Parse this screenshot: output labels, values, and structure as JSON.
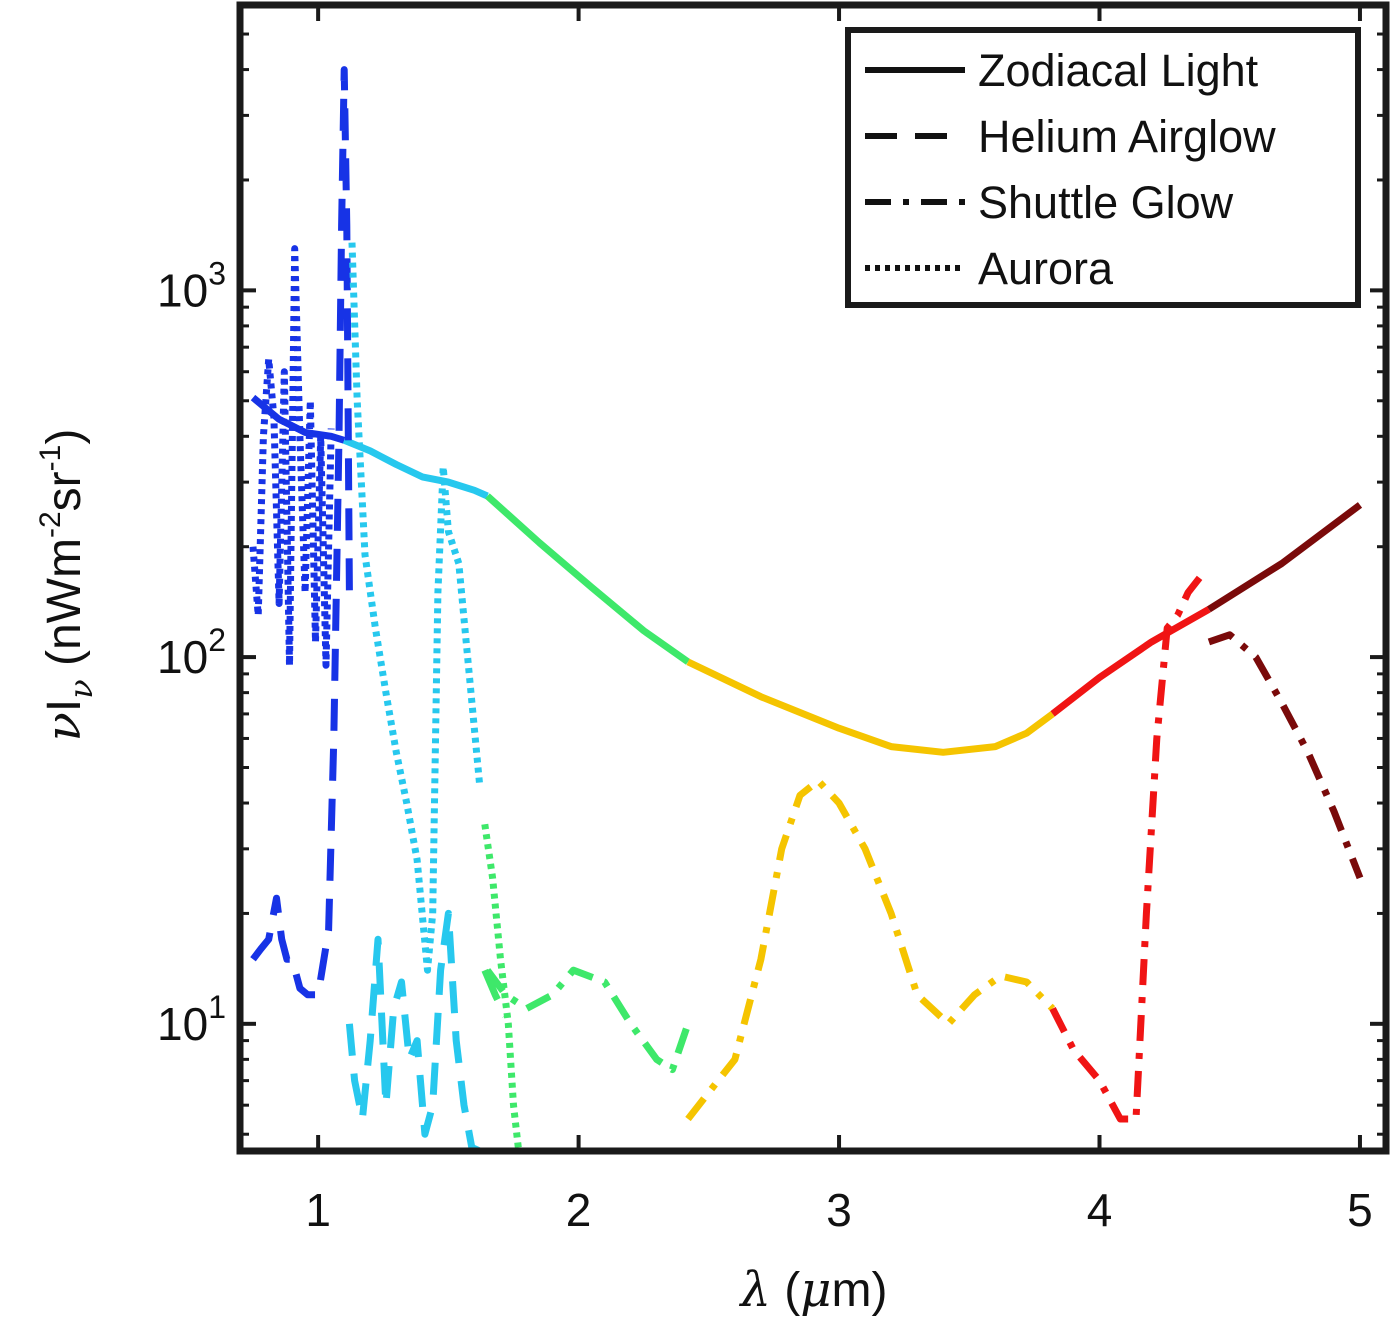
{
  "chart_data": {
    "type": "line",
    "title": "",
    "xlabel": "λ (μm)",
    "ylabel": "νIν (nWm⁻²sr⁻¹)",
    "xlim": [
      0.7,
      5.1
    ],
    "ylim": [
      4.5,
      6000
    ],
    "yscale": "log",
    "grid": false,
    "legend_position": "top-right",
    "x_ticks": [
      {
        "value": 1,
        "label": "1"
      },
      {
        "value": 2,
        "label": "2"
      },
      {
        "value": 3,
        "label": "3"
      },
      {
        "value": 4,
        "label": "4"
      },
      {
        "value": 5,
        "label": "5"
      }
    ],
    "y_ticks": [
      {
        "value": 10,
        "base": "10",
        "exp": "1"
      },
      {
        "value": 100,
        "base": "10",
        "exp": "2"
      },
      {
        "value": 1000,
        "base": "10",
        "exp": "3"
      }
    ],
    "legend": [
      {
        "label": "Zodiacal Light",
        "style": "solid"
      },
      {
        "label": "Helium Airglow",
        "style": "dashed"
      },
      {
        "label": "Shuttle Glow",
        "style": "dashdot"
      },
      {
        "label": "Aurora",
        "style": "dotted"
      }
    ],
    "colors": {
      "band1": "#1733e6",
      "band2": "#27c8ee",
      "band3": "#3ee86a",
      "band4": "#f5c400",
      "band5": "#f01414",
      "band6": "#7a0a0a"
    },
    "series": [
      {
        "name": "Zodiacal Light",
        "style": "solid",
        "band": "band1",
        "x": [
          0.75,
          0.85,
          0.95,
          1.05,
          1.1
        ],
        "y": [
          510,
          445,
          410,
          400,
          390
        ]
      },
      {
        "name": "Zodiacal Light",
        "style": "solid",
        "band": "band2",
        "x": [
          1.1,
          1.2,
          1.3,
          1.4,
          1.5,
          1.6,
          1.65
        ],
        "y": [
          390,
          365,
          335,
          310,
          300,
          285,
          275
        ]
      },
      {
        "name": "Zodiacal Light",
        "style": "solid",
        "band": "band3",
        "x": [
          1.65,
          1.85,
          2.05,
          2.25,
          2.42
        ],
        "y": [
          275,
          205,
          155,
          118,
          97
        ]
      },
      {
        "name": "Zodiacal Light",
        "style": "solid",
        "band": "band4",
        "x": [
          2.42,
          2.7,
          3.0,
          3.2,
          3.4,
          3.6,
          3.72,
          3.82
        ],
        "y": [
          97,
          78,
          64,
          57,
          55,
          57,
          62,
          70
        ]
      },
      {
        "name": "Zodiacal Light",
        "style": "solid",
        "band": "band5",
        "x": [
          3.82,
          4.0,
          4.2,
          4.42
        ],
        "y": [
          70,
          88,
          110,
          135
        ]
      },
      {
        "name": "Zodiacal Light",
        "style": "solid",
        "band": "band6",
        "x": [
          4.42,
          4.7,
          5.0
        ],
        "y": [
          135,
          180,
          260
        ]
      },
      {
        "name": "Helium Airglow",
        "style": "dashed",
        "band": "band1",
        "x": [
          0.75,
          0.78,
          0.81,
          0.84,
          0.86,
          0.88,
          0.9,
          0.93,
          0.96,
          1.0,
          1.04,
          1.06,
          1.08,
          1.09,
          1.1,
          1.11,
          1.12
        ],
        "y": [
          15,
          16,
          17,
          22,
          17,
          15,
          15,
          12.5,
          12,
          12,
          18,
          60,
          400,
          1500,
          4000,
          1500,
          150
        ]
      },
      {
        "name": "Helium Airglow",
        "style": "dashed",
        "band": "band2",
        "x": [
          1.12,
          1.14,
          1.17,
          1.2,
          1.23,
          1.26,
          1.29,
          1.32,
          1.35,
          1.38,
          1.41,
          1.44,
          1.47,
          1.5,
          1.53,
          1.56,
          1.59,
          1.62
        ],
        "y": [
          10,
          7,
          5.5,
          9,
          17,
          6,
          11,
          13,
          8,
          9,
          5,
          6,
          14,
          20,
          9,
          6,
          4.6,
          4.5
        ]
      },
      {
        "name": "Helium Airglow",
        "style": "dashed",
        "band": "band3",
        "x": [
          1.64,
          1.68,
          1.72
        ],
        "y": [
          14,
          12,
          10.5
        ]
      },
      {
        "name": "Aurora",
        "style": "dotted",
        "band": "band1",
        "x": [
          0.75,
          0.77,
          0.79,
          0.81,
          0.83,
          0.85,
          0.87,
          0.89,
          0.91,
          0.93,
          0.95,
          0.97,
          0.99,
          1.01,
          1.03,
          1.05
        ],
        "y": [
          200,
          130,
          400,
          650,
          450,
          140,
          600,
          95,
          1300,
          400,
          150,
          500,
          110,
          400,
          95,
          420
        ]
      },
      {
        "name": "Aurora",
        "style": "dotted",
        "band": "band2",
        "x": [
          1.13,
          1.15,
          1.18,
          1.22,
          1.26,
          1.3,
          1.34,
          1.38,
          1.42,
          1.44,
          1.46,
          1.48,
          1.5,
          1.54,
          1.58,
          1.62
        ],
        "y": [
          1350,
          500,
          190,
          120,
          80,
          55,
          40,
          28,
          14,
          20,
          150,
          330,
          220,
          180,
          90,
          45
        ]
      },
      {
        "name": "Aurora",
        "style": "dotted",
        "band": "band3",
        "x": [
          1.64,
          1.67,
          1.7,
          1.73,
          1.75,
          1.77
        ],
        "y": [
          35,
          25,
          15,
          10,
          6,
          4.5
        ]
      },
      {
        "name": "Shuttle Glow",
        "style": "dashdot",
        "band": "band3",
        "x": [
          1.65,
          1.72,
          1.8,
          1.9,
          1.98,
          2.1,
          2.2,
          2.3,
          2.36,
          2.42
        ],
        "y": [
          14,
          12,
          11,
          12,
          14,
          13,
          10,
          8,
          7.5,
          10
        ]
      },
      {
        "name": "Shuttle Glow",
        "style": "dashdot",
        "band": "band4",
        "x": [
          2.42,
          2.5,
          2.6,
          2.7,
          2.78,
          2.85,
          2.92,
          3.0,
          3.1,
          3.2,
          3.3,
          3.42,
          3.52,
          3.62,
          3.72,
          3.82
        ],
        "y": [
          5.5,
          6.5,
          8,
          15,
          30,
          42,
          46,
          40,
          30,
          20,
          12,
          10,
          12,
          13.5,
          13,
          11
        ]
      },
      {
        "name": "Shuttle Glow",
        "style": "dashdot",
        "band": "band5",
        "x": [
          3.82,
          3.9,
          4.0,
          4.08,
          4.14,
          4.18,
          4.22,
          4.26,
          4.3,
          4.34,
          4.4
        ],
        "y": [
          11,
          8.5,
          7,
          5.5,
          5.5,
          20,
          60,
          120,
          130,
          150,
          170
        ]
      },
      {
        "name": "Shuttle Glow",
        "style": "dashdot",
        "band": "band6",
        "x": [
          4.42,
          4.5,
          4.6,
          4.7,
          4.8,
          4.9,
          5.0
        ],
        "y": [
          110,
          115,
          100,
          75,
          55,
          38,
          25
        ]
      }
    ]
  }
}
